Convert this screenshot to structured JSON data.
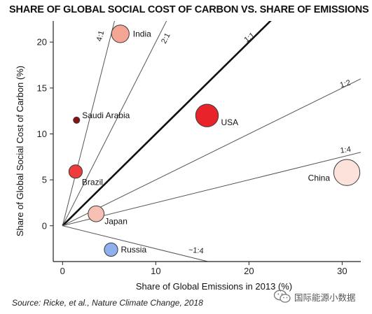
{
  "chart_data": {
    "type": "scatter",
    "title": "SHARE OF GLOBAL SOCIAL COST OF CARBON VS. SHARE OF EMISSIONS",
    "xlabel": "Share of Global Emissions in 2013 (%)",
    "ylabel": "Share of Global Social Cost of Carbon (%)",
    "xlim": [
      -1,
      32
    ],
    "ylim": [
      -3.9,
      22.3
    ],
    "xticks": [
      0,
      10,
      20,
      30
    ],
    "yticks": [
      0,
      5,
      10,
      15,
      20
    ],
    "grid": false,
    "points": [
      {
        "label": "India",
        "x": 6.2,
        "y": 20.9,
        "size": 1.05,
        "color": "#f4a594"
      },
      {
        "label": "Saudi Arabia",
        "x": 1.5,
        "y": 11.5,
        "size": 0.38,
        "color": "#8b1010"
      },
      {
        "label": "USA",
        "x": 15.5,
        "y": 12.0,
        "size": 1.35,
        "color": "#e8232a"
      },
      {
        "label": "Brazil",
        "x": 1.4,
        "y": 5.9,
        "size": 0.8,
        "color": "#ee3b3b"
      },
      {
        "label": "China",
        "x": 30.5,
        "y": 5.8,
        "size": 1.55,
        "color": "#fde2dc"
      },
      {
        "label": "Japan",
        "x": 3.6,
        "y": 1.3,
        "size": 0.95,
        "color": "#f7c0b4"
      },
      {
        "label": "Russia",
        "x": 5.2,
        "y": -2.6,
        "size": 0.8,
        "color": "#8fb0ee"
      }
    ],
    "reference_lines": [
      {
        "label": "4:1",
        "slope": 4,
        "bold": false
      },
      {
        "label": "2:1",
        "slope": 2,
        "bold": false
      },
      {
        "label": "1:1",
        "slope": 1,
        "bold": true
      },
      {
        "label": "1:2",
        "slope": 0.5,
        "bold": false
      },
      {
        "label": "1:4",
        "slope": 0.25,
        "bold": false
      },
      {
        "label": "−1:4",
        "slope": -0.25,
        "bold": false
      }
    ]
  },
  "source": "Source: Ricke, et al., Nature Climate Change, 2018",
  "watermark": "国际能源小数据",
  "colors": {
    "axis": "#222222",
    "line": "#555555",
    "bold_line": "#111111"
  }
}
